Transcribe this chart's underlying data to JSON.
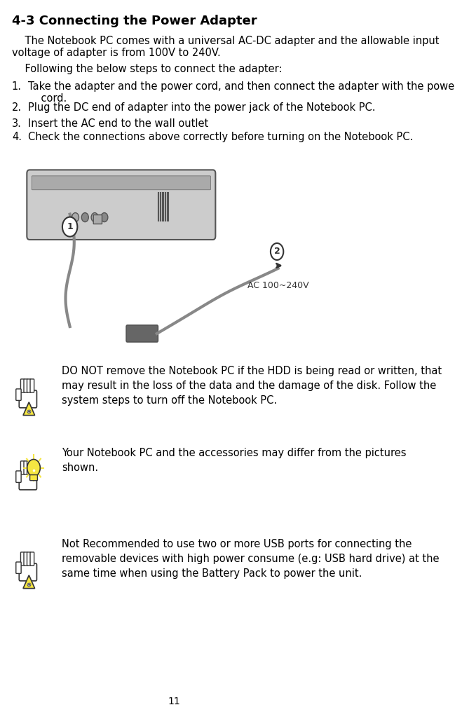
{
  "title": "4-3 Connecting the Power Adapter",
  "title_fontsize": 13,
  "body_fontsize": 10.5,
  "page_number": "11",
  "bg_color": "#ffffff",
  "text_color": "#000000",
  "para1": "    The Notebook PC comes with a universal AC-DC adapter and the allowable input\nvoltage of adapter is from 100V to 240V.",
  "para2": "    Following the below steps to connect the adapter:",
  "items": [
    "Take the adapter and the power cord, and then connect the adapter with the power\n    cord.",
    "Plug the DC end of adapter into the power jack of the Notebook PC.",
    "Insert the AC end to the wall outlet",
    "Check the connections above correctly before turning on the Notebook PC."
  ],
  "note1": "DO NOT remove the Notebook PC if the HDD is being read or written, that\nmay result in the loss of the data and the damage of the disk. Follow the\nsystem steps to turn off the Notebook PC.",
  "note2": "Your Notebook PC and the accessories may differ from the pictures\nshown.",
  "note3": "Not Recommended to use two or more USB ports for connecting the\nremovable devices with high power consume (e.g: USB hard drive) at the\nsame time when using the Battery Pack to power the unit.",
  "ac_label": "AC 100~240V",
  "icon_warning_color": "#f5e642",
  "icon_outline_color": "#333333"
}
